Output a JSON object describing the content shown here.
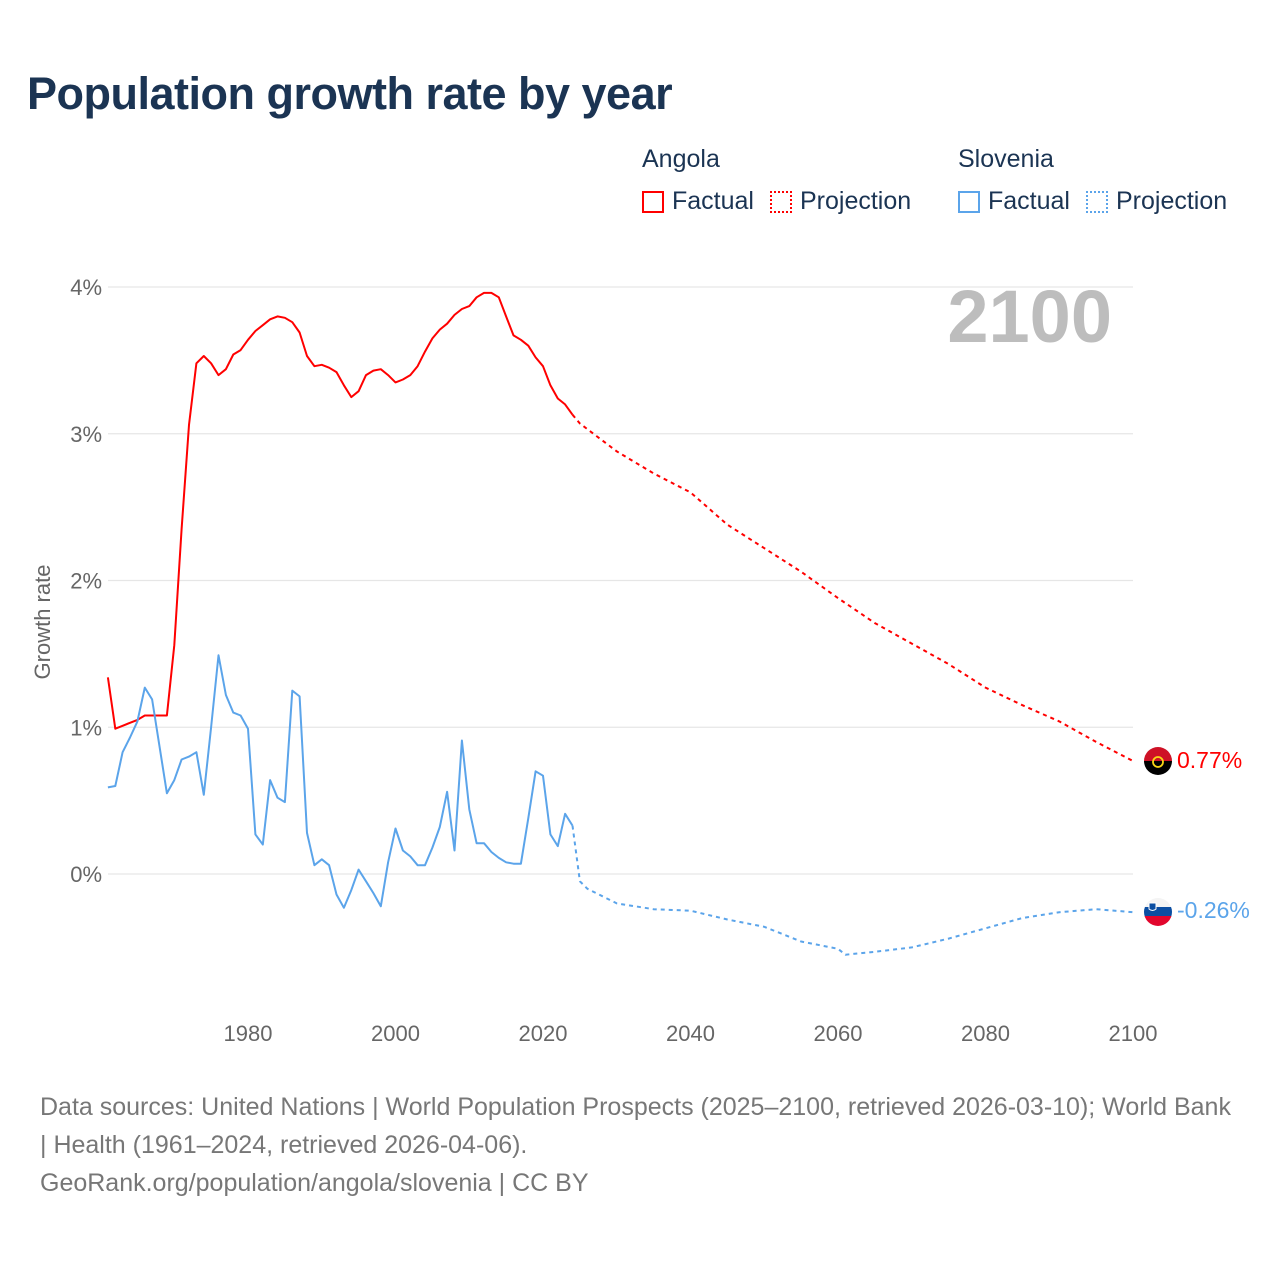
{
  "title": "Population growth rate by year",
  "year_display": "2100",
  "colors": {
    "angola": "#ff0000",
    "slovenia": "#5ba4ea",
    "title": "#1b3453",
    "grid": "#e6e6e6"
  },
  "legend": [
    {
      "country": "Angola",
      "factual": "Factual",
      "projection": "Projection"
    },
    {
      "country": "Slovenia",
      "factual": "Factual",
      "projection": "Projection"
    }
  ],
  "end_labels": {
    "angola": "0.77%",
    "slovenia": "-0.26%"
  },
  "footer": {
    "sources": "Data sources: United Nations | World Population Prospects (2025–2100, retrieved 2026-03-10); World Bank | Health (1961–2024, retrieved 2026-04-06).",
    "credit": "GeoRank.org/population/angola/slovenia | CC BY"
  },
  "chart_data": {
    "type": "line",
    "title": "Population growth rate by year",
    "xlabel": "",
    "ylabel": "Growth rate",
    "xlim": [
      1961,
      2100
    ],
    "ylim": [
      -0.8,
      4.0
    ],
    "x_ticks": [
      1980,
      2000,
      2020,
      2040,
      2060,
      2080,
      2100
    ],
    "x_tick_labels": [
      "1980",
      "2000",
      "2020",
      "2040",
      "2060",
      "2080",
      "2100"
    ],
    "y_ticks": [
      0,
      1,
      2,
      3,
      4
    ],
    "y_tick_labels": [
      "0%",
      "1%",
      "2%",
      "3%",
      "4%"
    ],
    "grid": true,
    "legend_position": "top-right",
    "series": [
      {
        "name": "Angola Factual",
        "country": "Angola",
        "kind": "factual",
        "x_start": 1961,
        "values": [
          1.34,
          0.99,
          1.01,
          1.03,
          1.05,
          1.08,
          1.08,
          1.08,
          1.08,
          1.56,
          2.35,
          3.06,
          3.48,
          3.53,
          3.48,
          3.4,
          3.44,
          3.54,
          3.57,
          3.64,
          3.7,
          3.74,
          3.78,
          3.8,
          3.79,
          3.76,
          3.69,
          3.53,
          3.46,
          3.47,
          3.45,
          3.42,
          3.33,
          3.25,
          3.29,
          3.4,
          3.43,
          3.44,
          3.4,
          3.35,
          3.37,
          3.4,
          3.46,
          3.56,
          3.65,
          3.71,
          3.75,
          3.81,
          3.85,
          3.87,
          3.93,
          3.96,
          3.96,
          3.93,
          3.8,
          3.67,
          3.64,
          3.6,
          3.52,
          3.46,
          3.33,
          3.24,
          3.2,
          3.13
        ]
      },
      {
        "name": "Angola Projection",
        "country": "Angola",
        "kind": "projection",
        "x": [
          2025,
          2030,
          2035,
          2040,
          2045,
          2050,
          2055,
          2060,
          2065,
          2070,
          2075,
          2080,
          2085,
          2090,
          2095,
          2100
        ],
        "values": [
          3.07,
          2.88,
          2.73,
          2.6,
          2.38,
          2.22,
          2.06,
          1.88,
          1.71,
          1.57,
          1.43,
          1.27,
          1.15,
          1.04,
          0.9,
          0.77
        ]
      },
      {
        "name": "Slovenia Factual",
        "country": "Slovenia",
        "kind": "factual",
        "x_start": 1961,
        "values": [
          0.59,
          0.6,
          0.83,
          0.93,
          1.04,
          1.27,
          1.19,
          0.87,
          0.55,
          0.64,
          0.78,
          0.8,
          0.83,
          0.54,
          1.0,
          1.49,
          1.22,
          1.1,
          1.08,
          0.99,
          0.27,
          0.2,
          0.64,
          0.52,
          0.49,
          1.25,
          1.21,
          0.28,
          0.06,
          0.1,
          0.06,
          -0.14,
          -0.23,
          -0.11,
          0.03,
          -0.05,
          -0.13,
          -0.22,
          0.08,
          0.31,
          0.16,
          0.12,
          0.06,
          0.06,
          0.18,
          0.32,
          0.56,
          0.16,
          0.91,
          0.44,
          0.21,
          0.21,
          0.15,
          0.11,
          0.08,
          0.07,
          0.07,
          0.38,
          0.7,
          0.67,
          0.27,
          0.19,
          0.41,
          0.33
        ]
      },
      {
        "name": "Slovenia Projection",
        "country": "Slovenia",
        "kind": "projection",
        "x": [
          2025,
          2026,
          2030,
          2035,
          2040,
          2045,
          2050,
          2055,
          2060,
          2061,
          2065,
          2070,
          2075,
          2080,
          2085,
          2090,
          2095,
          2100
        ],
        "values": [
          -0.05,
          -0.1,
          -0.2,
          -0.24,
          -0.25,
          -0.31,
          -0.36,
          -0.46,
          -0.51,
          -0.55,
          -0.53,
          -0.5,
          -0.44,
          -0.37,
          -0.3,
          -0.26,
          -0.24,
          -0.26
        ]
      }
    ]
  }
}
